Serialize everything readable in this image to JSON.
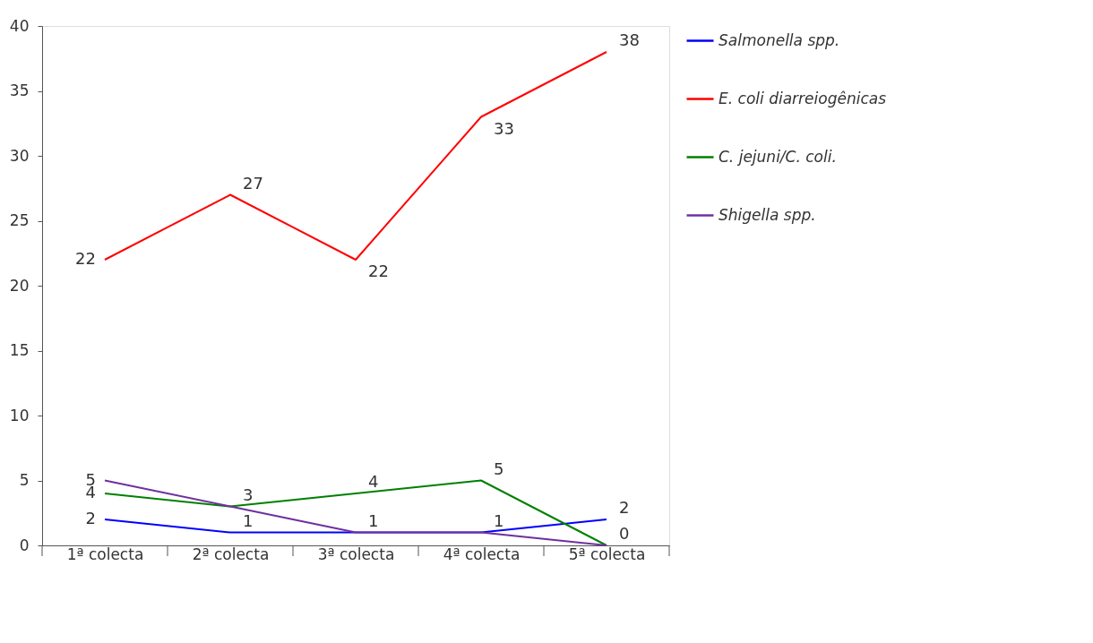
{
  "chart_data": {
    "type": "line",
    "categories": [
      "1ª colecta",
      "2ª colecta",
      "3ª colecta",
      "4ª colecta",
      "5ª colecta"
    ],
    "series": [
      {
        "name": "Salmonella spp.",
        "color": "#0000ff",
        "values": [
          2,
          1,
          1,
          1,
          2
        ],
        "value_labels": [
          "2",
          "1",
          "1",
          "1",
          "2"
        ]
      },
      {
        "name": "E. coli diarreiogênicas",
        "color": "#ff0000",
        "values": [
          22,
          27,
          22,
          33,
          38
        ],
        "value_labels": [
          "22",
          "27",
          "22",
          "33",
          "38"
        ]
      },
      {
        "name": "C. jejuni/C. coli.",
        "color": "#008000",
        "values": [
          4,
          3,
          4,
          5,
          0
        ],
        "value_labels": [
          "4",
          null,
          "4",
          "5",
          null
        ]
      },
      {
        "name": "Shigella spp.",
        "color": "#7030a0",
        "values": [
          5,
          3,
          1,
          1,
          0
        ],
        "value_labels": [
          "5",
          "3",
          null,
          null,
          "0"
        ]
      }
    ],
    "ylim": [
      0,
      40
    ],
    "yticks": [
      0,
      5,
      10,
      15,
      20,
      25,
      30,
      35,
      40
    ],
    "grid": false,
    "legend": "right",
    "marker": "none",
    "line_style": "solid"
  }
}
